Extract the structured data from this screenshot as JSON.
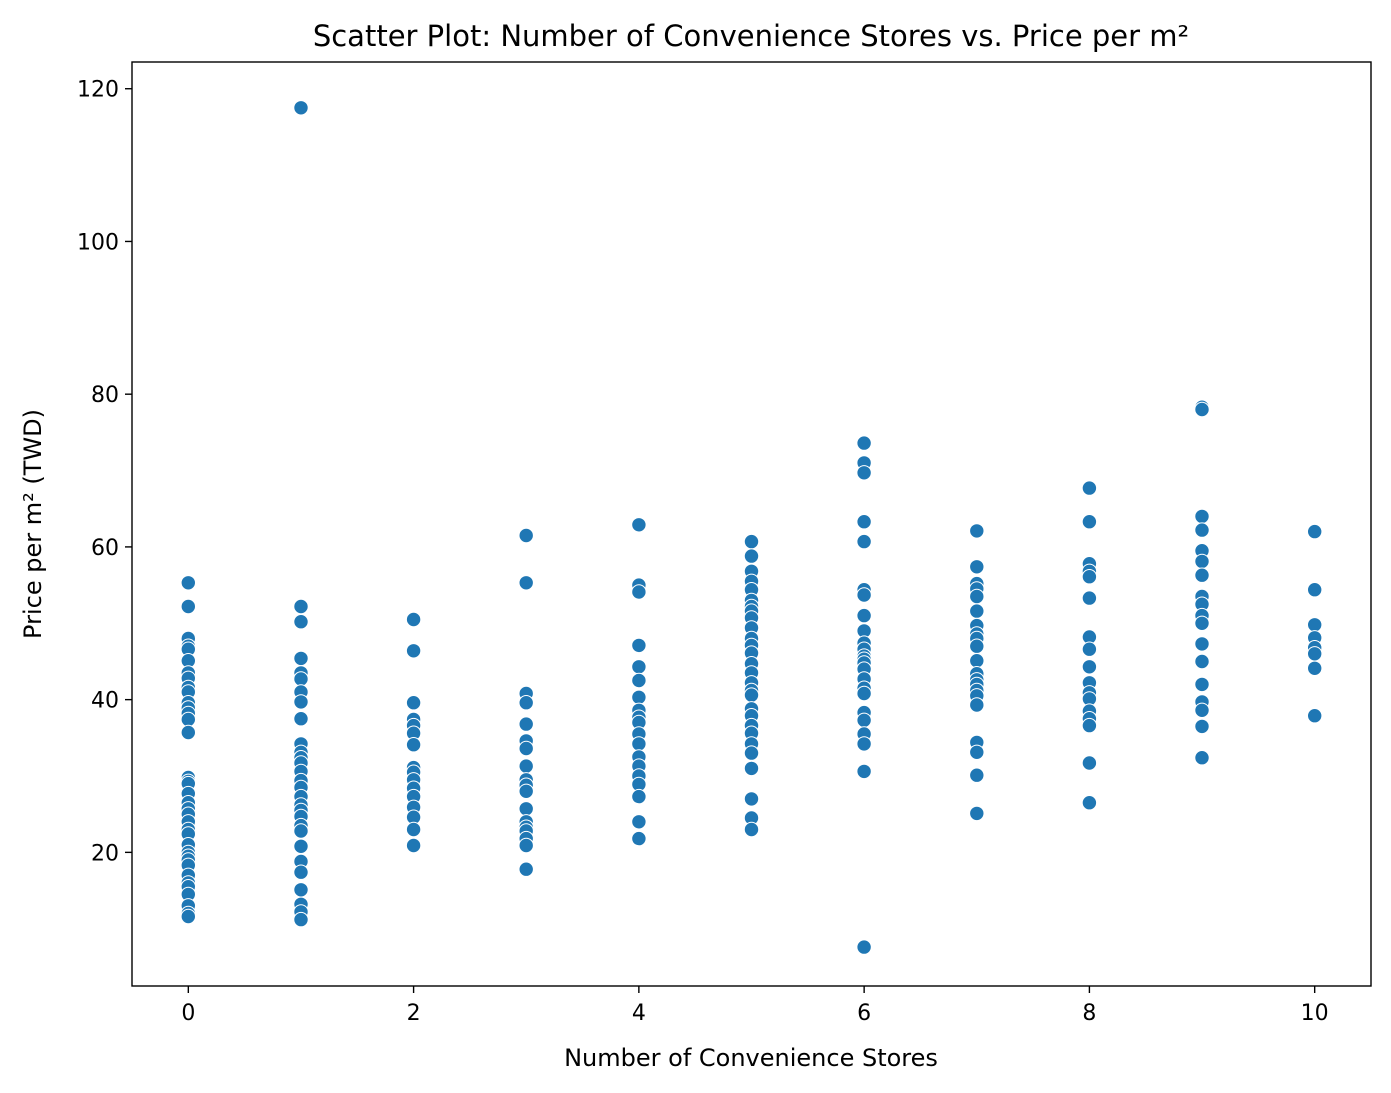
{
  "chart_data": {
    "type": "scatter",
    "title": "Scatter Plot: Number of Convenience Stores vs. Price per m²",
    "xlabel": "Number of Convenience Stores",
    "ylabel": "Price per m² (TWD)",
    "xlim": [
      -0.5,
      10.5
    ],
    "ylim": [
      2.5,
      123.5
    ],
    "xticks": [
      0,
      2,
      4,
      6,
      8,
      10
    ],
    "yticks": [
      20,
      40,
      60,
      80,
      100,
      120
    ],
    "grid": false,
    "marker_color": "#1f77b4",
    "points": [
      {
        "x": 0,
        "y": 55.3
      },
      {
        "x": 0,
        "y": 52.2
      },
      {
        "x": 0,
        "y": 48.0
      },
      {
        "x": 0,
        "y": 47.0
      },
      {
        "x": 0,
        "y": 46.6
      },
      {
        "x": 0,
        "y": 45.1
      },
      {
        "x": 0,
        "y": 43.5
      },
      {
        "x": 0,
        "y": 42.8
      },
      {
        "x": 0,
        "y": 41.6
      },
      {
        "x": 0,
        "y": 41.0
      },
      {
        "x": 0,
        "y": 39.6
      },
      {
        "x": 0,
        "y": 38.9
      },
      {
        "x": 0,
        "y": 38.2
      },
      {
        "x": 0,
        "y": 37.4
      },
      {
        "x": 0,
        "y": 35.7
      },
      {
        "x": 0,
        "y": 29.8
      },
      {
        "x": 0,
        "y": 29.3
      },
      {
        "x": 0,
        "y": 29.0
      },
      {
        "x": 0,
        "y": 27.7
      },
      {
        "x": 0,
        "y": 26.5
      },
      {
        "x": 0,
        "y": 25.7
      },
      {
        "x": 0,
        "y": 25.0
      },
      {
        "x": 0,
        "y": 24.0
      },
      {
        "x": 0,
        "y": 23.0
      },
      {
        "x": 0,
        "y": 22.4
      },
      {
        "x": 0,
        "y": 21.0
      },
      {
        "x": 0,
        "y": 20.0
      },
      {
        "x": 0,
        "y": 19.5
      },
      {
        "x": 0,
        "y": 19.0
      },
      {
        "x": 0,
        "y": 18.3
      },
      {
        "x": 0,
        "y": 17.0
      },
      {
        "x": 0,
        "y": 16.0
      },
      {
        "x": 0,
        "y": 15.5
      },
      {
        "x": 0,
        "y": 14.5
      },
      {
        "x": 0,
        "y": 13.0
      },
      {
        "x": 0,
        "y": 12.0
      },
      {
        "x": 0,
        "y": 11.6
      },
      {
        "x": 1,
        "y": 117.5
      },
      {
        "x": 1,
        "y": 52.2
      },
      {
        "x": 1,
        "y": 50.2
      },
      {
        "x": 1,
        "y": 45.4
      },
      {
        "x": 1,
        "y": 43.5
      },
      {
        "x": 1,
        "y": 42.7
      },
      {
        "x": 1,
        "y": 41.0
      },
      {
        "x": 1,
        "y": 39.7
      },
      {
        "x": 1,
        "y": 37.5
      },
      {
        "x": 1,
        "y": 34.2
      },
      {
        "x": 1,
        "y": 33.1
      },
      {
        "x": 1,
        "y": 32.4
      },
      {
        "x": 1,
        "y": 31.7
      },
      {
        "x": 1,
        "y": 30.6
      },
      {
        "x": 1,
        "y": 29.4
      },
      {
        "x": 1,
        "y": 28.5
      },
      {
        "x": 1,
        "y": 27.3
      },
      {
        "x": 1,
        "y": 26.2
      },
      {
        "x": 1,
        "y": 25.5
      },
      {
        "x": 1,
        "y": 24.7
      },
      {
        "x": 1,
        "y": 23.5
      },
      {
        "x": 1,
        "y": 22.8
      },
      {
        "x": 1,
        "y": 20.8
      },
      {
        "x": 1,
        "y": 18.8
      },
      {
        "x": 1,
        "y": 17.4
      },
      {
        "x": 1,
        "y": 15.1
      },
      {
        "x": 1,
        "y": 13.2
      },
      {
        "x": 1,
        "y": 12.2
      },
      {
        "x": 1,
        "y": 11.2
      },
      {
        "x": 2,
        "y": 50.5
      },
      {
        "x": 2,
        "y": 46.4
      },
      {
        "x": 2,
        "y": 39.6
      },
      {
        "x": 2,
        "y": 37.4
      },
      {
        "x": 2,
        "y": 36.6
      },
      {
        "x": 2,
        "y": 35.6
      },
      {
        "x": 2,
        "y": 34.1
      },
      {
        "x": 2,
        "y": 31.1
      },
      {
        "x": 2,
        "y": 30.5
      },
      {
        "x": 2,
        "y": 29.5
      },
      {
        "x": 2,
        "y": 28.4
      },
      {
        "x": 2,
        "y": 27.3
      },
      {
        "x": 2,
        "y": 25.9
      },
      {
        "x": 2,
        "y": 24.6
      },
      {
        "x": 2,
        "y": 23.0
      },
      {
        "x": 2,
        "y": 20.9
      },
      {
        "x": 3,
        "y": 61.5
      },
      {
        "x": 3,
        "y": 55.3
      },
      {
        "x": 3,
        "y": 40.8
      },
      {
        "x": 3,
        "y": 39.6
      },
      {
        "x": 3,
        "y": 36.8
      },
      {
        "x": 3,
        "y": 34.6
      },
      {
        "x": 3,
        "y": 33.6
      },
      {
        "x": 3,
        "y": 31.3
      },
      {
        "x": 3,
        "y": 29.5
      },
      {
        "x": 3,
        "y": 28.8
      },
      {
        "x": 3,
        "y": 28.0
      },
      {
        "x": 3,
        "y": 25.7
      },
      {
        "x": 3,
        "y": 24.0
      },
      {
        "x": 3,
        "y": 23.3
      },
      {
        "x": 3,
        "y": 22.8
      },
      {
        "x": 3,
        "y": 21.8
      },
      {
        "x": 3,
        "y": 20.9
      },
      {
        "x": 3,
        "y": 17.8
      },
      {
        "x": 4,
        "y": 62.9
      },
      {
        "x": 4,
        "y": 55.0
      },
      {
        "x": 4,
        "y": 54.1
      },
      {
        "x": 4,
        "y": 47.1
      },
      {
        "x": 4,
        "y": 44.3
      },
      {
        "x": 4,
        "y": 42.5
      },
      {
        "x": 4,
        "y": 40.3
      },
      {
        "x": 4,
        "y": 38.6
      },
      {
        "x": 4,
        "y": 37.7
      },
      {
        "x": 4,
        "y": 37.0
      },
      {
        "x": 4,
        "y": 35.5
      },
      {
        "x": 4,
        "y": 34.2
      },
      {
        "x": 4,
        "y": 32.5
      },
      {
        "x": 4,
        "y": 31.3
      },
      {
        "x": 4,
        "y": 30.0
      },
      {
        "x": 4,
        "y": 28.9
      },
      {
        "x": 4,
        "y": 27.3
      },
      {
        "x": 4,
        "y": 24.0
      },
      {
        "x": 4,
        "y": 21.8
      },
      {
        "x": 5,
        "y": 60.7
      },
      {
        "x": 5,
        "y": 58.8
      },
      {
        "x": 5,
        "y": 56.8
      },
      {
        "x": 5,
        "y": 55.5
      },
      {
        "x": 5,
        "y": 54.4
      },
      {
        "x": 5,
        "y": 53.0
      },
      {
        "x": 5,
        "y": 52.2
      },
      {
        "x": 5,
        "y": 51.6
      },
      {
        "x": 5,
        "y": 50.7
      },
      {
        "x": 5,
        "y": 49.4
      },
      {
        "x": 5,
        "y": 48.0
      },
      {
        "x": 5,
        "y": 47.1
      },
      {
        "x": 5,
        "y": 46.1
      },
      {
        "x": 5,
        "y": 44.7
      },
      {
        "x": 5,
        "y": 43.5
      },
      {
        "x": 5,
        "y": 42.2
      },
      {
        "x": 5,
        "y": 41.2
      },
      {
        "x": 5,
        "y": 40.6
      },
      {
        "x": 5,
        "y": 38.8
      },
      {
        "x": 5,
        "y": 37.9
      },
      {
        "x": 5,
        "y": 36.6
      },
      {
        "x": 5,
        "y": 35.6
      },
      {
        "x": 5,
        "y": 34.2
      },
      {
        "x": 5,
        "y": 33.0
      },
      {
        "x": 5,
        "y": 31.0
      },
      {
        "x": 5,
        "y": 27.0
      },
      {
        "x": 5,
        "y": 24.5
      },
      {
        "x": 5,
        "y": 23.0
      },
      {
        "x": 6,
        "y": 73.6
      },
      {
        "x": 6,
        "y": 71.0
      },
      {
        "x": 6,
        "y": 69.7
      },
      {
        "x": 6,
        "y": 63.3
      },
      {
        "x": 6,
        "y": 60.7
      },
      {
        "x": 6,
        "y": 54.4
      },
      {
        "x": 6,
        "y": 53.7
      },
      {
        "x": 6,
        "y": 51.0
      },
      {
        "x": 6,
        "y": 49.0
      },
      {
        "x": 6,
        "y": 47.4
      },
      {
        "x": 6,
        "y": 46.6
      },
      {
        "x": 6,
        "y": 45.7
      },
      {
        "x": 6,
        "y": 45.3
      },
      {
        "x": 6,
        "y": 44.8
      },
      {
        "x": 6,
        "y": 44.0
      },
      {
        "x": 6,
        "y": 42.7
      },
      {
        "x": 6,
        "y": 41.5
      },
      {
        "x": 6,
        "y": 40.8
      },
      {
        "x": 6,
        "y": 38.3
      },
      {
        "x": 6,
        "y": 37.3
      },
      {
        "x": 6,
        "y": 35.5
      },
      {
        "x": 6,
        "y": 34.2
      },
      {
        "x": 6,
        "y": 30.6
      },
      {
        "x": 6,
        "y": 7.6
      },
      {
        "x": 7,
        "y": 62.1
      },
      {
        "x": 7,
        "y": 57.4
      },
      {
        "x": 7,
        "y": 55.2
      },
      {
        "x": 7,
        "y": 54.5
      },
      {
        "x": 7,
        "y": 53.5
      },
      {
        "x": 7,
        "y": 51.6
      },
      {
        "x": 7,
        "y": 49.7
      },
      {
        "x": 7,
        "y": 48.6
      },
      {
        "x": 7,
        "y": 48.0
      },
      {
        "x": 7,
        "y": 47.0
      },
      {
        "x": 7,
        "y": 45.1
      },
      {
        "x": 7,
        "y": 43.4
      },
      {
        "x": 7,
        "y": 42.6
      },
      {
        "x": 7,
        "y": 42.0
      },
      {
        "x": 7,
        "y": 41.2
      },
      {
        "x": 7,
        "y": 40.5
      },
      {
        "x": 7,
        "y": 39.3
      },
      {
        "x": 7,
        "y": 34.4
      },
      {
        "x": 7,
        "y": 33.1
      },
      {
        "x": 7,
        "y": 30.1
      },
      {
        "x": 7,
        "y": 25.1
      },
      {
        "x": 8,
        "y": 67.7
      },
      {
        "x": 8,
        "y": 63.3
      },
      {
        "x": 8,
        "y": 57.8
      },
      {
        "x": 8,
        "y": 56.8
      },
      {
        "x": 8,
        "y": 56.1
      },
      {
        "x": 8,
        "y": 53.3
      },
      {
        "x": 8,
        "y": 48.2
      },
      {
        "x": 8,
        "y": 46.6
      },
      {
        "x": 8,
        "y": 44.3
      },
      {
        "x": 8,
        "y": 42.2
      },
      {
        "x": 8,
        "y": 40.9
      },
      {
        "x": 8,
        "y": 40.1
      },
      {
        "x": 8,
        "y": 38.5
      },
      {
        "x": 8,
        "y": 37.5
      },
      {
        "x": 8,
        "y": 36.6
      },
      {
        "x": 8,
        "y": 31.7
      },
      {
        "x": 8,
        "y": 26.5
      },
      {
        "x": 9,
        "y": 78.3
      },
      {
        "x": 9,
        "y": 78.0
      },
      {
        "x": 9,
        "y": 64.0
      },
      {
        "x": 9,
        "y": 62.2
      },
      {
        "x": 9,
        "y": 59.5
      },
      {
        "x": 9,
        "y": 58.1
      },
      {
        "x": 9,
        "y": 56.3
      },
      {
        "x": 9,
        "y": 53.5
      },
      {
        "x": 9,
        "y": 52.5
      },
      {
        "x": 9,
        "y": 51.0
      },
      {
        "x": 9,
        "y": 50.0
      },
      {
        "x": 9,
        "y": 47.3
      },
      {
        "x": 9,
        "y": 45.0
      },
      {
        "x": 9,
        "y": 42.0
      },
      {
        "x": 9,
        "y": 39.7
      },
      {
        "x": 9,
        "y": 38.6
      },
      {
        "x": 9,
        "y": 36.5
      },
      {
        "x": 9,
        "y": 32.4
      },
      {
        "x": 10,
        "y": 62.0
      },
      {
        "x": 10,
        "y": 54.4
      },
      {
        "x": 10,
        "y": 49.8
      },
      {
        "x": 10,
        "y": 48.1
      },
      {
        "x": 10,
        "y": 46.8
      },
      {
        "x": 10,
        "y": 46.0
      },
      {
        "x": 10,
        "y": 44.1
      },
      {
        "x": 10,
        "y": 37.9
      }
    ]
  }
}
